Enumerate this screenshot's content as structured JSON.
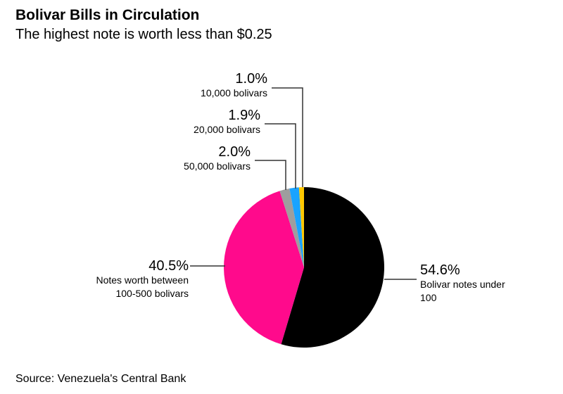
{
  "title": "Bolivar Bills in Circulation",
  "subtitle": "The highest note is worth less than $0.25",
  "source": "Source: Venezuela's Central Bank",
  "chart_data": {
    "type": "pie",
    "title": "Bolivar Bills in Circulation",
    "subtitle": "The highest note is worth less than $0.25",
    "start": "top",
    "direction": "clockwise",
    "slices": [
      {
        "value": 54.6,
        "pct_label": "54.6%",
        "label": [
          "Bolivar notes under",
          "100"
        ],
        "color": "#000000"
      },
      {
        "value": 40.5,
        "pct_label": "40.5%",
        "label": [
          "Notes worth between",
          "100-500 bolivars"
        ],
        "color": "#ff0a8c"
      },
      {
        "value": 2.0,
        "pct_label": "2.0%",
        "label": [
          "50,000 bolivars"
        ],
        "color": "#9e9e9e"
      },
      {
        "value": 1.9,
        "pct_label": "1.9%",
        "label": [
          "20,000 bolivars"
        ],
        "color": "#1aa3ff"
      },
      {
        "value": 1.0,
        "pct_label": "1.0%",
        "label": [
          "10,000 bolivars"
        ],
        "color": "#ffc800"
      }
    ]
  }
}
